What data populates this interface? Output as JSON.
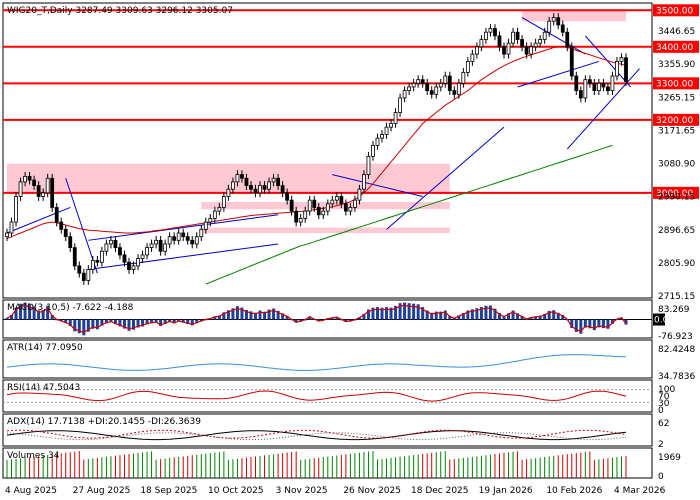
{
  "chart_data": [
    {
      "type": "candlestick",
      "title": "WIG20_T,Daily  3287.49 3309.63 3296.12 3305.07",
      "x_ticks": [
        "4 Aug 2025",
        "27 Aug 2025",
        "18 Sep 2025",
        "10 Oct 2025",
        "3 Nov 2025",
        "26 Nov 2025",
        "18 Dec 2025",
        "19 Jan 2026",
        "10 Feb 2026",
        "4 Mar 2026"
      ],
      "y_ticks": [
        "3446.65",
        "3355.90",
        "3265.15",
        "3171.65",
        "3080.90",
        "2990.15",
        "2896.65",
        "2805.90",
        "2715.15"
      ],
      "ylim": [
        2712,
        3520
      ],
      "levels": [
        {
          "value": 3500,
          "label": "3500.00",
          "color": "#ff0000"
        },
        {
          "value": 3400,
          "label": "3400.00",
          "color": "#ff0000"
        },
        {
          "value": 3300,
          "label": "3300.00",
          "color": "#ff0000"
        },
        {
          "value": 3200,
          "label": "3200.00",
          "color": "#ff0000"
        },
        {
          "value": 3000,
          "label": "3000.00",
          "color": "#ff0000"
        }
      ],
      "close_series": [
        2890,
        2920,
        2990,
        3030,
        3045,
        3035,
        3020,
        2990,
        3000,
        3040,
        2960,
        2920,
        2900,
        2880,
        2850,
        2800,
        2780,
        2760,
        2790,
        2815,
        2810,
        2840,
        2860,
        2870,
        2850,
        2830,
        2810,
        2790,
        2800,
        2820,
        2830,
        2850,
        2860,
        2870,
        2840,
        2860,
        2880,
        2870,
        2890,
        2880,
        2870,
        2860,
        2880,
        2900,
        2920,
        2930,
        2950,
        2960,
        2990,
        3010,
        3030,
        3050,
        3040,
        3020,
        3010,
        3000,
        3020,
        3010,
        3030,
        3040,
        3020,
        3000,
        2980,
        2950,
        2920,
        2930,
        2950,
        2980,
        2960,
        2940,
        2950,
        2970,
        2980,
        2990,
        2970,
        2950,
        2960,
        2980,
        3010,
        3050,
        3100,
        3130,
        3150,
        3160,
        3180,
        3190,
        3220,
        3260,
        3280,
        3290,
        3300,
        3310,
        3300,
        3280,
        3270,
        3290,
        3300,
        3320,
        3280,
        3270,
        3300,
        3330,
        3360,
        3380,
        3400,
        3420,
        3440,
        3450,
        3430,
        3400,
        3380,
        3410,
        3440,
        3420,
        3400,
        3380,
        3400,
        3410,
        3420,
        3440,
        3470,
        3480,
        3460,
        3440,
        3400,
        3320,
        3280,
        3260,
        3310,
        3300,
        3280,
        3300,
        3290,
        3280,
        3320,
        3360,
        3370,
        3305
      ],
      "moving_averages": [
        {
          "name": "MA red",
          "color": "#cc0000",
          "values": [
            2875,
            2880,
            2885,
            2890,
            2895,
            2900,
            2905,
            2910,
            2915,
            2918,
            2920,
            2918,
            2915,
            2912,
            2908,
            2905,
            2902,
            2900,
            2898,
            2897,
            2896,
            2895,
            2894,
            2893,
            2892,
            2891,
            2890,
            2890,
            2890,
            2891,
            2892,
            2893,
            2895,
            2897,
            2898,
            2900,
            2902,
            2904,
            2906,
            2908,
            2910,
            2912,
            2914,
            2916,
            2918,
            2920,
            2922,
            2924,
            2926,
            2928,
            2930,
            2932,
            2934,
            2936,
            2938,
            2939,
            2940,
            2941,
            2942,
            2943,
            2944,
            2945,
            2946,
            2947,
            2948,
            2949,
            2950,
            2952,
            2954,
            2956,
            2958,
            2960,
            2962,
            2965,
            2968,
            2972,
            2976,
            2982,
            2990,
            3000,
            3012,
            3025,
            3040,
            3055,
            3070,
            3085,
            3100,
            3115,
            3130,
            3145,
            3160,
            3175,
            3190,
            3200,
            3210,
            3220,
            3230,
            3240,
            3248,
            3256,
            3264,
            3272,
            3280,
            3290,
            3300,
            3310,
            3318,
            3326,
            3334,
            3342,
            3348,
            3354,
            3360,
            3365,
            3370,
            3374,
            3378,
            3382,
            3386,
            3390,
            3394,
            3398,
            3400,
            3400,
            3398,
            3395,
            3390,
            3386,
            3382,
            3378,
            3374,
            3370,
            3366,
            3362,
            3358,
            3355,
            3352,
            3350
          ]
        },
        {
          "name": "MA green",
          "color": "#008000",
          "values": [
            null,
            null,
            null,
            null,
            null,
            null,
            null,
            null,
            null,
            null,
            null,
            null,
            null,
            null,
            null,
            null,
            null,
            null,
            null,
            null,
            null,
            null,
            null,
            null,
            null,
            null,
            null,
            null,
            null,
            null,
            null,
            null,
            null,
            null,
            null,
            null,
            null,
            null,
            null,
            null,
            null,
            null,
            null,
            null,
            2750,
            2755,
            2760,
            2765,
            2770,
            2775,
            2780,
            2785,
            2790,
            2795,
            2800,
            2805,
            2810,
            2815,
            2820,
            2825,
            2830,
            2835,
            2840,
            2845,
            2850,
            2855,
            2858,
            2862,
            2866,
            2870,
            2874,
            2878,
            2882,
            2886,
            2890,
            2894,
            2898,
            2902,
            2906,
            2910,
            2914,
            2918,
            2922,
            2926,
            2930,
            2934,
            2938,
            2942,
            2946,
            2950,
            2954,
            2958,
            2962,
            2966,
            2970,
            2974,
            2978,
            2982,
            2986,
            2990,
            2994,
            2998,
            3002,
            3006,
            3010,
            3014,
            3018,
            3022,
            3026,
            3030,
            3034,
            3038,
            3042,
            3046,
            3050,
            3054,
            3058,
            3062,
            3066,
            3070,
            3074,
            3078,
            3082,
            3086,
            3090,
            3094,
            3098,
            3102,
            3106,
            3110,
            3114,
            3118,
            3122,
            3126,
            3130
          ]
        }
      ],
      "zones": [
        {
          "from_x": 0,
          "to_x": 98,
          "y_low": 3000,
          "y_high": 3080
        },
        {
          "from_x": 43,
          "to_x": 98,
          "y_low": 2955,
          "y_high": 2975
        },
        {
          "from_x": 43,
          "to_x": 98,
          "y_low": 2890,
          "y_high": 2905
        },
        {
          "from_x": 114,
          "to_x": 139,
          "y_low": 3470,
          "y_high": 3500
        }
      ]
    },
    {
      "type": "bar",
      "title": "MACD(3,10,5) -7.622 -4.188",
      "y_ticks": [
        "83.269",
        "0.00",
        "-76.923"
      ],
      "ylim": [
        -90,
        95
      ],
      "highlight_label": "0.00"
    },
    {
      "type": "line",
      "title": "ATR(14) 77.0950",
      "y_ticks": [
        "82.4248",
        "34.7836"
      ],
      "ylim": [
        25,
        95
      ]
    },
    {
      "type": "line",
      "title": "RSI(14) 47.5043",
      "y_ticks": [
        "100",
        "70",
        "30",
        "0"
      ],
      "ylim": [
        0,
        100
      ]
    },
    {
      "type": "line",
      "title": "ADX(14) 17.7138 +DI:20.1455 -DI:26.3639",
      "y_ticks": [
        "62",
        "2"
      ],
      "ylim": [
        0,
        65
      ]
    },
    {
      "type": "bar",
      "title": "Volumes 34",
      "y_ticks": [
        "1969",
        "0"
      ],
      "ylim": [
        0,
        2000
      ]
    }
  ]
}
